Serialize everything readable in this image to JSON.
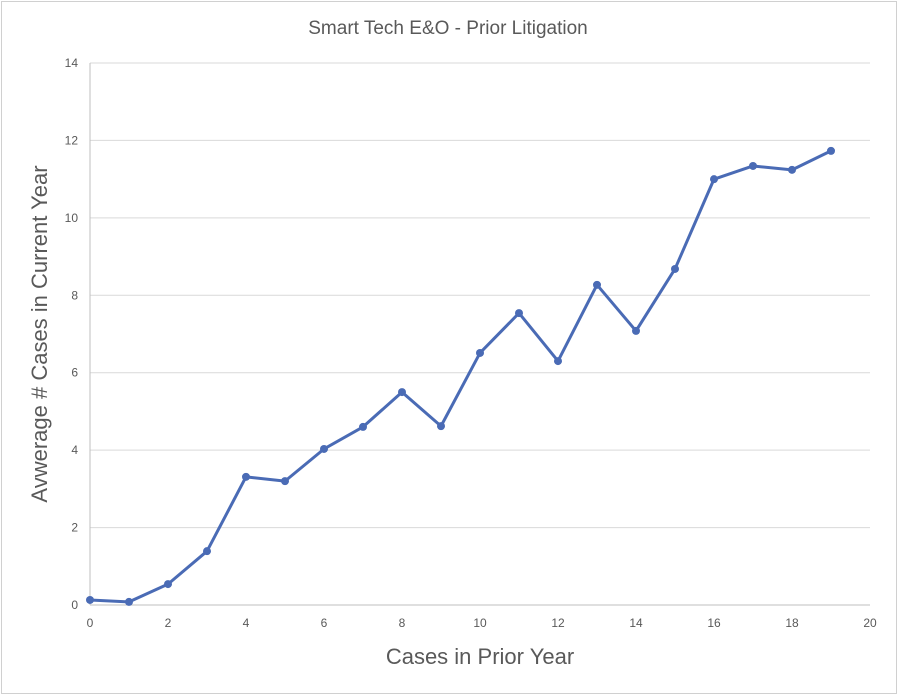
{
  "chart_data": {
    "type": "line",
    "title": "Smart Tech E&O - Prior Litigation",
    "xlabel": "Cases in Prior Year",
    "ylabel": "Avwerage # Cases in Current Year",
    "xlim": [
      0,
      20
    ],
    "ylim": [
      0,
      14
    ],
    "xticks": [
      0,
      2,
      4,
      6,
      8,
      10,
      12,
      14,
      16,
      18,
      20
    ],
    "yticks": [
      0,
      2,
      4,
      6,
      8,
      10,
      12,
      14
    ],
    "grid": "horizontal",
    "legend": "none",
    "series": [
      {
        "color": "#4a6bb5",
        "markers": true,
        "x": [
          0,
          1,
          2,
          3,
          4,
          5,
          6,
          7,
          8,
          9,
          10,
          11,
          12,
          13,
          14,
          15,
          16,
          17,
          18,
          19
        ],
        "y": [
          0.13,
          0.08,
          0.54,
          1.39,
          3.31,
          3.2,
          4.03,
          4.6,
          5.5,
          4.62,
          6.51,
          7.54,
          6.3,
          8.27,
          7.08,
          8.68,
          11.0,
          11.34,
          11.24,
          11.73
        ]
      }
    ]
  }
}
